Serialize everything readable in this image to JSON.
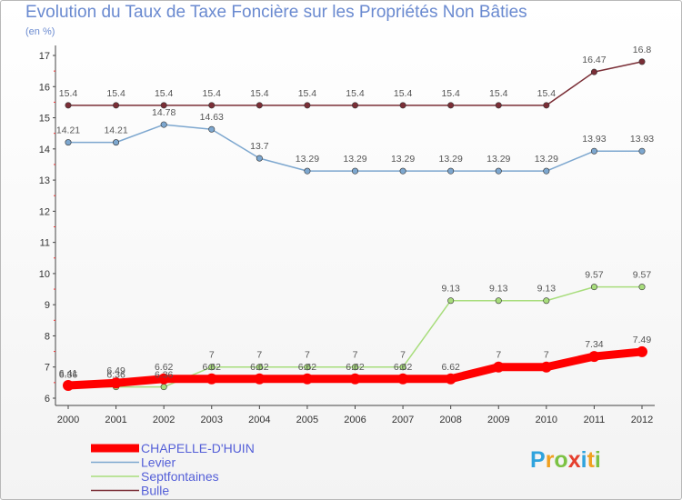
{
  "chart_data": {
    "type": "line",
    "title": "Evolution du Taux de Taxe Foncière sur les Propriétés Non Bâties",
    "unit_label": "(en %)",
    "x": [
      "2000",
      "2001",
      "2002",
      "2003",
      "2004",
      "2005",
      "2006",
      "2007",
      "2008",
      "2009",
      "2010",
      "2011",
      "2012"
    ],
    "ylim": [
      6,
      17
    ],
    "yticks": [
      6,
      7,
      8,
      9,
      10,
      11,
      12,
      13,
      14,
      15,
      16,
      17
    ],
    "grid": false,
    "legend_position": "bottom-left",
    "series": [
      {
        "name": "Bulle",
        "color": "#7a2e36",
        "labels": [
          "15.4",
          "15.4",
          "15.4",
          "15.4",
          "15.4",
          "15.4",
          "15.4",
          "15.4",
          "15.4",
          "15.4",
          "15.4",
          "16.47",
          "16.8"
        ],
        "values": [
          15.4,
          15.4,
          15.4,
          15.4,
          15.4,
          15.4,
          15.4,
          15.4,
          15.4,
          15.4,
          15.4,
          16.47,
          16.8
        ]
      },
      {
        "name": "Levier",
        "color": "#7da7cf",
        "labels": [
          "14.21",
          "14.21",
          "14.78",
          "14.63",
          "13.7",
          "13.29",
          "13.29",
          "13.29",
          "13.29",
          "13.29",
          "13.29",
          "13.93",
          "13.93"
        ],
        "values": [
          14.21,
          14.21,
          14.78,
          14.63,
          13.7,
          13.29,
          13.29,
          13.29,
          13.29,
          13.29,
          13.29,
          13.93,
          13.93
        ]
      },
      {
        "name": "Septfontaines",
        "color": "#a8dd7c",
        "labels": [
          "6.36",
          "6.36",
          "6.36",
          "7",
          "7",
          "7",
          "7",
          "7",
          "9.13",
          "9.13",
          "9.13",
          "9.57",
          "9.57"
        ],
        "values": [
          6.36,
          6.36,
          6.36,
          7,
          7,
          7,
          7,
          7,
          9.13,
          9.13,
          9.13,
          9.57,
          9.57
        ]
      },
      {
        "name": "CHAPELLE-D'HUIN",
        "color": "#ff0000",
        "labels": [
          "6.41",
          "6.49",
          "6.62",
          "6.62",
          "6.62",
          "6.62",
          "6.62",
          "6.62",
          "6.62",
          "7",
          "7",
          "7.34",
          "7.49"
        ],
        "values": [
          6.41,
          6.49,
          6.62,
          6.62,
          6.62,
          6.62,
          6.62,
          6.62,
          6.62,
          7,
          7,
          7.34,
          7.49
        ]
      }
    ],
    "legend_order": [
      "CHAPELLE-D'HUIN",
      "Levier",
      "Septfontaines",
      "Bulle"
    ]
  },
  "watermark": {
    "text": "Proxiti"
  }
}
